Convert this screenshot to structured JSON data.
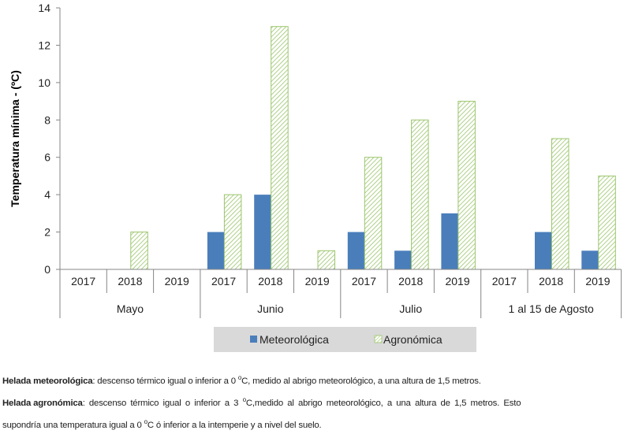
{
  "chart_data": {
    "type": "bar",
    "title": "",
    "xlabel": "",
    "ylabel": "Temperatura mínima  - (ºC)",
    "ylim": [
      0,
      14
    ],
    "yticks": [
      0,
      2,
      4,
      6,
      8,
      10,
      12,
      14
    ],
    "grid": false,
    "legend_placement": "bottom",
    "groups": [
      {
        "label": "Mayo",
        "categories": [
          "2017",
          "2018",
          "2019"
        ]
      },
      {
        "label": "Junio",
        "categories": [
          "2017",
          "2018",
          "2019"
        ]
      },
      {
        "label": "Julio",
        "categories": [
          "2017",
          "2018",
          "2019"
        ]
      },
      {
        "label": "1 al 15 de Agosto",
        "categories": [
          "2017",
          "2018",
          "2019"
        ]
      }
    ],
    "series": [
      {
        "name": "Meteorológica",
        "color": "#4a7ebb",
        "values": [
          0,
          0,
          0,
          2,
          4,
          0,
          2,
          1,
          3,
          0,
          2,
          1
        ]
      },
      {
        "name": "Agronómica",
        "color": "#9bc56b",
        "pattern": "diagonal-hatch",
        "values": [
          0,
          2,
          0,
          4,
          13,
          1,
          6,
          8,
          9,
          0,
          7,
          5
        ]
      }
    ]
  },
  "notes": [
    {
      "term": "Helada meteorológica",
      "sep": ":",
      "text_a": " descenso térmico igual o inferior a 0 ",
      "deg": "o",
      "text_b": "C, medido al abrigo meteorológico, a una altura de 1,5 metros."
    },
    {
      "term": "Helada agronómica",
      "sep": ":",
      "text_a": " descenso térmico igual o inferior a 3 ",
      "deg": "o",
      "text_b": "C,medido al abrigo meteorológico, a una altura de 1,5 metros. Esto"
    },
    {
      "term": "",
      "sep": "",
      "text_a": "supondría una temperatura igual a 0 ",
      "deg": "o",
      "text_b": "C ó inferior a la intemperie y a nivel del suelo."
    }
  ]
}
